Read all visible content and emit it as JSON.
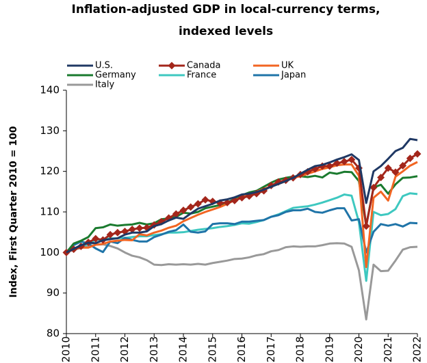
{
  "chart_data": {
    "type": "line",
    "title": [
      "Inflation-adjusted GDP in local-currency terms,",
      "indexed levels"
    ],
    "y_label": "Index, First Quarter 2010 = 100",
    "categories": [
      "2010",
      null,
      null,
      null,
      "2011",
      null,
      null,
      null,
      "2012",
      null,
      null,
      null,
      "2013",
      null,
      null,
      null,
      "2014",
      null,
      null,
      null,
      "2015",
      null,
      null,
      null,
      "2016",
      null,
      null,
      null,
      "2017",
      null,
      null,
      null,
      "2018",
      null,
      null,
      null,
      "2019",
      null,
      null,
      null,
      "2020",
      null,
      null,
      null,
      "2021",
      null,
      null,
      null,
      "2022"
    ],
    "ylim": [
      80,
      140
    ],
    "yticks": [
      80,
      90,
      100,
      110,
      120,
      130,
      140
    ],
    "grid": false,
    "series": [
      {
        "name": "U.S.",
        "color": "#1f3864",
        "values": [
          100,
          100.9,
          101.8,
          102.4,
          102.3,
          103.0,
          103.3,
          103.5,
          104.4,
          104.9,
          104.9,
          105.2,
          106.5,
          107.0,
          107.9,
          108.6,
          108.3,
          109.6,
          110.8,
          111.4,
          112.0,
          112.8,
          113.1,
          113.6,
          114.3,
          114.5,
          114.9,
          115.5,
          116.2,
          116.9,
          117.6,
          118.4,
          119.4,
          120.4,
          121.3,
          121.6,
          122.2,
          122.9,
          123.5,
          124.2,
          122.8,
          112.2,
          120.0,
          121.3,
          123.1,
          125.0,
          125.8,
          128.0,
          127.7
        ]
      },
      {
        "name": "Canada",
        "color": "#a3261b",
        "marker": "diamond",
        "values": [
          100,
          100.8,
          101.5,
          102.5,
          103.4,
          103.1,
          104.4,
          104.9,
          105.2,
          105.7,
          106.0,
          106.1,
          106.8,
          107.6,
          108.5,
          109.5,
          110.4,
          111.2,
          112.0,
          113.0,
          112.6,
          112.2,
          112.3,
          112.8,
          113.5,
          113.9,
          114.5,
          115.2,
          116.5,
          117.4,
          117.8,
          118.4,
          119.2,
          119.9,
          120.6,
          121.3,
          121.3,
          122.0,
          122.4,
          122.9,
          120.8,
          106.5,
          116.0,
          118.5,
          120.8,
          119.8,
          121.4,
          123.2,
          124.3
        ]
      },
      {
        "name": "UK",
        "color": "#f26522",
        "values": [
          100,
          100.9,
          101.2,
          101.2,
          101.9,
          102.1,
          102.7,
          102.9,
          103.1,
          103.0,
          104.5,
          104.2,
          104.9,
          105.4,
          106.1,
          106.6,
          107.7,
          108.5,
          109.3,
          110.0,
          110.6,
          111.2,
          112.0,
          112.9,
          113.6,
          114.3,
          115.0,
          115.7,
          116.3,
          116.9,
          117.6,
          118.4,
          118.8,
          119.4,
          120.0,
          120.6,
          121.0,
          121.5,
          121.7,
          121.7,
          118.9,
          96.4,
          113.5,
          115.0,
          112.8,
          118.7,
          120.0,
          121.4,
          122.3
        ]
      },
      {
        "name": "Germany",
        "color": "#1a7a2e",
        "values": [
          100,
          102.2,
          102.9,
          103.8,
          106.0,
          106.2,
          106.9,
          106.6,
          106.8,
          106.9,
          107.3,
          106.9,
          107.2,
          108.2,
          108.4,
          108.8,
          109.8,
          109.6,
          110.0,
          110.9,
          111.3,
          111.7,
          112.3,
          113.2,
          114.1,
          114.8,
          115.2,
          116.2,
          117.2,
          118.0,
          118.4,
          118.7,
          118.8,
          118.6,
          118.9,
          118.5,
          119.7,
          119.4,
          119.9,
          119.8,
          117.6,
          106.7,
          116.0,
          116.7,
          114.5,
          116.8,
          118.4,
          118.5,
          118.8
        ]
      },
      {
        "name": "France",
        "color": "#3ec8c0",
        "values": [
          100,
          100.8,
          101.4,
          102.1,
          103.1,
          103.2,
          103.5,
          103.5,
          103.6,
          103.8,
          104.0,
          104.0,
          104.3,
          104.5,
          104.9,
          104.9,
          105.0,
          105.3,
          105.6,
          105.8,
          106.0,
          106.3,
          106.5,
          106.8,
          107.2,
          107.1,
          107.5,
          108.0,
          108.8,
          109.4,
          110.2,
          111.0,
          111.2,
          111.4,
          111.8,
          112.3,
          112.9,
          113.5,
          114.3,
          114.0,
          107.5,
          93.0,
          110.0,
          109.2,
          109.5,
          110.7,
          113.9,
          114.6,
          114.4
        ]
      },
      {
        "name": "Japan",
        "color": "#1f74a8",
        "values": [
          100,
          101.8,
          102.7,
          102.2,
          101.0,
          100.1,
          102.7,
          102.3,
          103.6,
          103.1,
          102.7,
          102.7,
          103.8,
          104.4,
          105.1,
          105.5,
          106.9,
          105.1,
          104.9,
          105.2,
          107.0,
          107.2,
          107.2,
          107.0,
          107.6,
          107.6,
          107.8,
          108.0,
          108.8,
          109.2,
          110.0,
          110.4,
          110.4,
          110.8,
          110.0,
          109.8,
          110.4,
          110.9,
          110.9,
          107.9,
          108.2,
          100.0,
          105.1,
          107.0,
          106.6,
          107.0,
          106.4,
          107.3,
          107.2
        ]
      },
      {
        "name": "Italy",
        "color": "#999999",
        "values": [
          100,
          100.7,
          101.1,
          101.5,
          101.9,
          102.0,
          101.6,
          101.0,
          100.0,
          99.2,
          98.8,
          98.1,
          97.0,
          96.9,
          97.1,
          97.0,
          97.1,
          97.0,
          97.2,
          97.0,
          97.4,
          97.7,
          98.0,
          98.4,
          98.5,
          98.8,
          99.3,
          99.6,
          100.3,
          100.6,
          101.3,
          101.5,
          101.4,
          101.5,
          101.5,
          101.8,
          102.2,
          102.3,
          102.2,
          101.4,
          95.6,
          83.5,
          97.0,
          95.4,
          95.5,
          98.0,
          100.7,
          101.3,
          101.4
        ]
      }
    ]
  }
}
